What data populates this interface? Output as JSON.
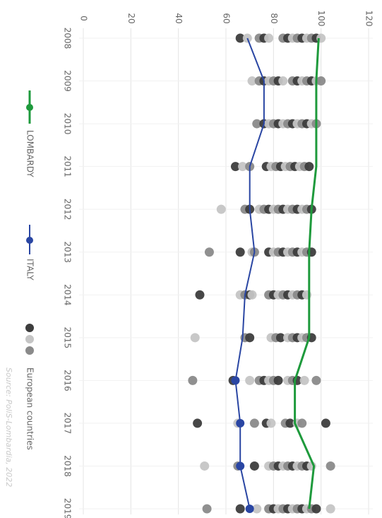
{
  "chart_data": {
    "type": "line",
    "orientation": "rotated-90-clockwise",
    "title": "",
    "xlabel": "",
    "ylabel": "",
    "ylim": [
      0,
      120
    ],
    "yticks": [
      0,
      20,
      40,
      60,
      80,
      100,
      120
    ],
    "grid": true,
    "legend_placement": "left",
    "x": [
      "2008",
      "2009",
      "2010",
      "2011",
      "2012",
      "2013",
      "2014",
      "2015",
      "2016",
      "2017",
      "2018",
      "2019"
    ],
    "series": [
      {
        "name": "LOMBARDY",
        "color": "#1e9a3c",
        "values": [
          99,
          98,
          98,
          98,
          96,
          95,
          95,
          95,
          89,
          89,
          97,
          95
        ]
      },
      {
        "name": "ITALY",
        "color": "#2a46a3",
        "values": [
          69,
          76,
          76,
          70,
          70,
          72,
          68,
          67,
          64,
          66,
          66,
          70
        ]
      }
    ],
    "scatter_groups": [
      {
        "name": "European countries",
        "colors": [
          "#3d3d3d",
          "#c5c5c5",
          "#8a8a8a"
        ]
      }
    ],
    "scatter_points": [
      [
        66,
        69,
        74,
        76,
        78,
        84,
        86,
        88,
        90,
        92,
        94,
        96,
        98,
        100
      ],
      [
        71,
        74,
        76,
        78,
        80,
        82,
        84,
        88,
        90,
        92,
        94,
        96,
        98,
        100
      ],
      [
        73,
        76,
        78,
        80,
        82,
        84,
        86,
        88,
        90,
        92,
        94,
        96,
        98
      ],
      [
        64,
        67,
        70,
        77,
        79,
        81,
        83,
        85,
        87,
        89,
        91,
        93,
        95
      ],
      [
        58,
        68,
        70,
        74,
        76,
        78,
        80,
        82,
        84,
        86,
        88,
        90,
        92,
        94,
        96
      ],
      [
        53,
        66,
        71,
        72,
        78,
        80,
        82,
        84,
        86,
        88,
        90,
        92,
        94,
        96
      ],
      [
        49,
        66,
        68,
        70,
        71,
        78,
        80,
        82,
        84,
        86,
        88,
        90,
        92,
        94
      ],
      [
        47,
        68,
        70,
        79,
        81,
        83,
        86,
        88,
        90,
        92,
        94,
        96
      ],
      [
        46,
        63,
        70,
        74,
        76,
        78,
        80,
        82,
        86,
        88,
        90,
        93,
        98
      ],
      [
        48,
        65,
        72,
        77,
        79,
        85,
        87,
        90,
        92,
        102
      ],
      [
        51,
        65,
        72,
        78,
        80,
        82,
        84,
        86,
        88,
        90,
        92,
        94,
        96,
        104
      ],
      [
        52,
        66,
        73,
        78,
        80,
        82,
        84,
        86,
        88,
        90,
        92,
        94,
        96,
        98,
        104
      ]
    ],
    "source": "Source: PoliS-Lombardia, 2022"
  }
}
